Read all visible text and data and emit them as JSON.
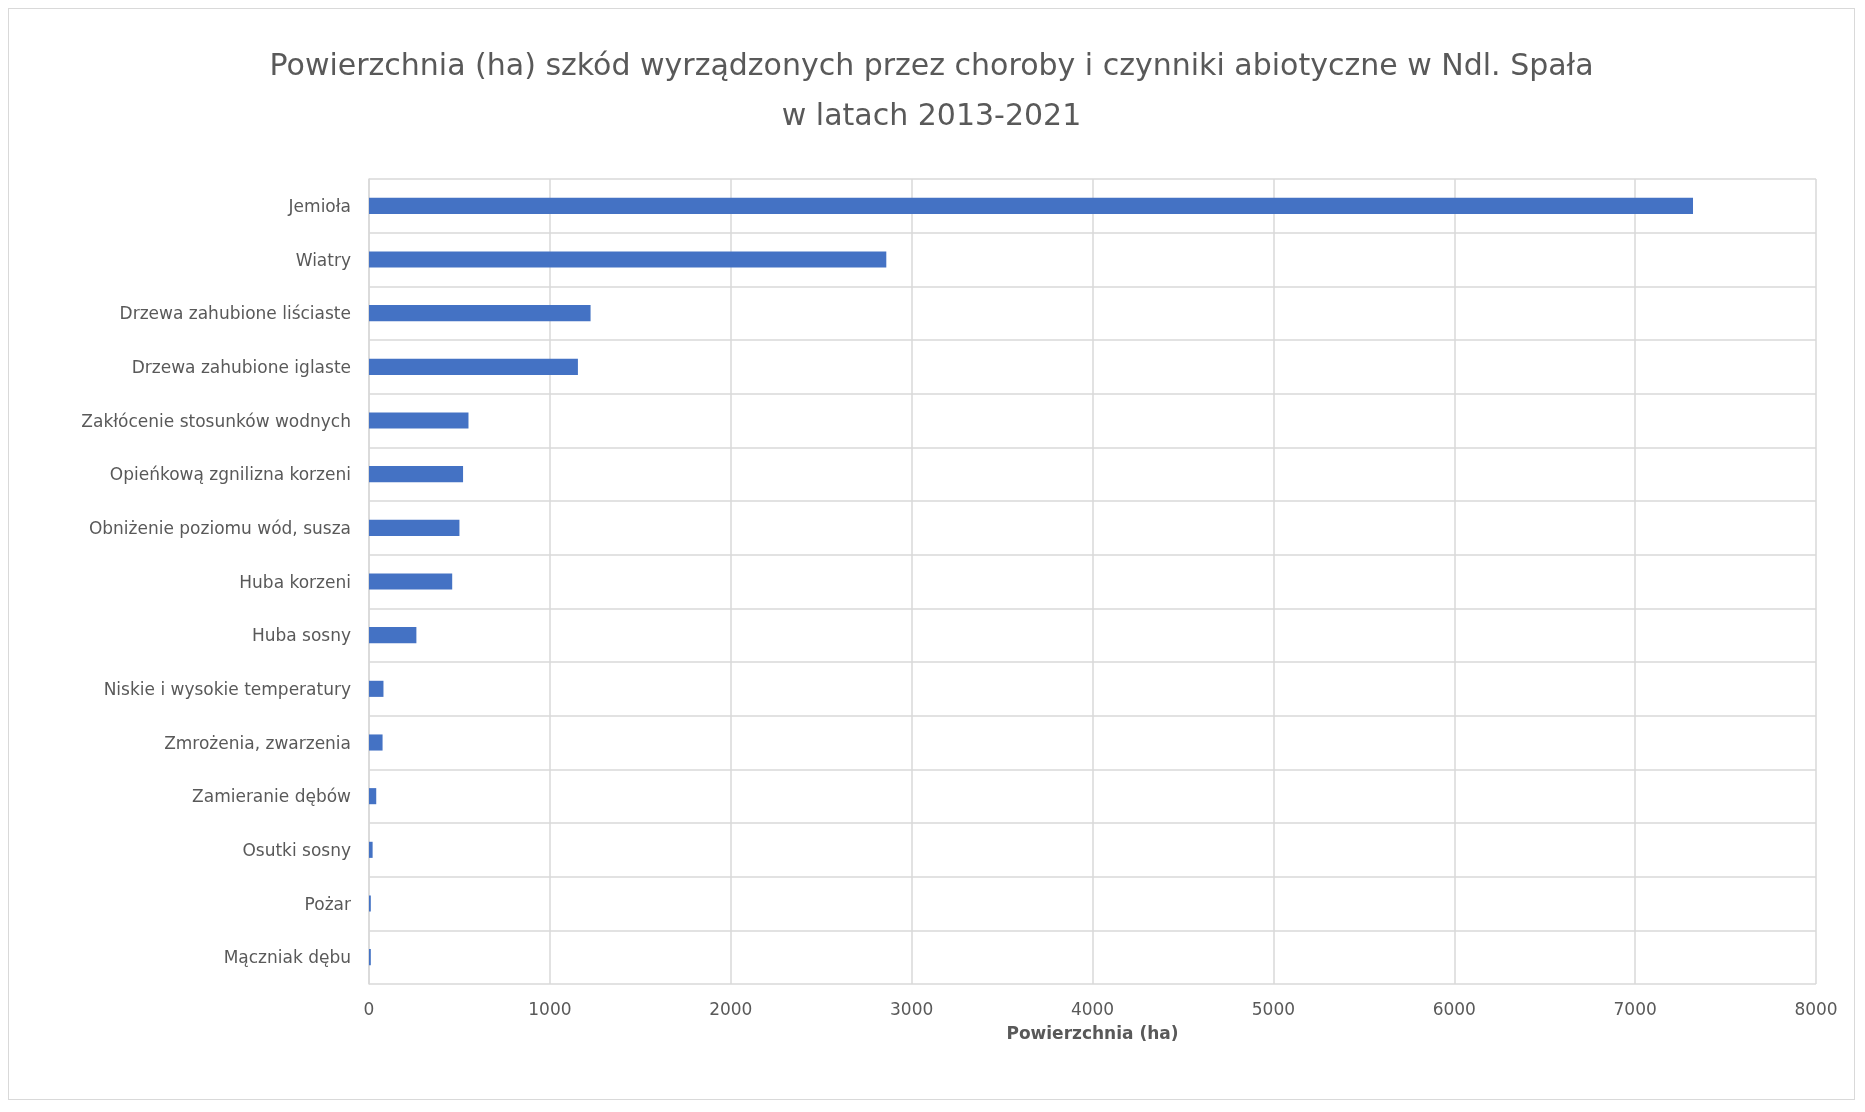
{
  "chart_data": {
    "type": "bar",
    "orientation": "horizontal",
    "title": "Powierzchnia (ha) szkód wyrządzonych przez choroby i czynniki abiotyczne w Ndl. Spała\nw latach 2013-2021",
    "xlabel": "Powierzchnia (ha)",
    "categories": [
      "Jemioła",
      "Wiatry",
      "Drzewa zahubione liściaste",
      "Drzewa zahubione iglaste",
      "Zakłócenie stosunków wodnych",
      "Opieńkową zgnilizna korzeni",
      "Obniżenie poziomu wód, susza",
      "Huba korzeni",
      "Huba sosny",
      "Niskie i wysokie temperatury",
      "Zmrożenia, zwarzenia",
      "Zamieranie dębów",
      "Osutki sosny",
      "Pożar",
      "Mączniak dębu"
    ],
    "values": [
      7320,
      2860,
      1225,
      1155,
      550,
      520,
      500,
      460,
      262,
      80,
      75,
      40,
      20,
      10,
      10
    ],
    "color": "#4472c4",
    "xlim": [
      0,
      8000
    ],
    "xticks": [
      0,
      1000,
      2000,
      3000,
      4000,
      5000,
      6000,
      7000,
      8000
    ],
    "grid": true
  }
}
